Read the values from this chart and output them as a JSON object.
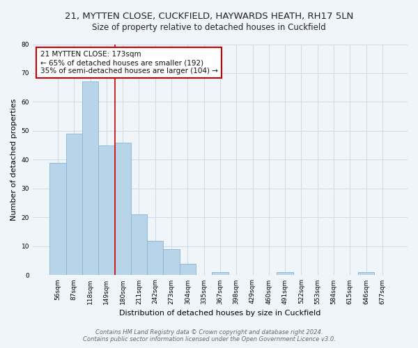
{
  "title": "21, MYTTEN CLOSE, CUCKFIELD, HAYWARDS HEATH, RH17 5LN",
  "subtitle": "Size of property relative to detached houses in Cuckfield",
  "xlabel": "Distribution of detached houses by size in Cuckfield",
  "ylabel": "Number of detached properties",
  "bar_labels": [
    "56sqm",
    "87sqm",
    "118sqm",
    "149sqm",
    "180sqm",
    "211sqm",
    "242sqm",
    "273sqm",
    "304sqm",
    "335sqm",
    "367sqm",
    "398sqm",
    "429sqm",
    "460sqm",
    "491sqm",
    "522sqm",
    "553sqm",
    "584sqm",
    "615sqm",
    "646sqm",
    "677sqm"
  ],
  "bar_values": [
    39,
    49,
    67,
    45,
    46,
    21,
    12,
    9,
    4,
    0,
    1,
    0,
    0,
    0,
    1,
    0,
    0,
    0,
    0,
    1,
    0
  ],
  "bar_color": "#b8d4e8",
  "bar_edge_color": "#8ab4d4",
  "vline_color": "#cc0000",
  "annotation_text": "21 MYTTEN CLOSE: 173sqm\n← 65% of detached houses are smaller (192)\n35% of semi-detached houses are larger (104) →",
  "annotation_box_color": "#ffffff",
  "annotation_box_edge": "#cc0000",
  "ylim": [
    0,
    80
  ],
  "yticks": [
    0,
    10,
    20,
    30,
    40,
    50,
    60,
    70,
    80
  ],
  "grid_color": "#d0dce8",
  "footer_line1": "Contains HM Land Registry data © Crown copyright and database right 2024.",
  "footer_line2": "Contains public sector information licensed under the Open Government Licence v3.0.",
  "title_fontsize": 9.5,
  "subtitle_fontsize": 8.5,
  "axis_label_fontsize": 8,
  "tick_fontsize": 6.5,
  "annotation_fontsize": 7.5,
  "footer_fontsize": 6,
  "background_color": "#f0f5fa",
  "plot_bg_color": "#f0f5fa"
}
